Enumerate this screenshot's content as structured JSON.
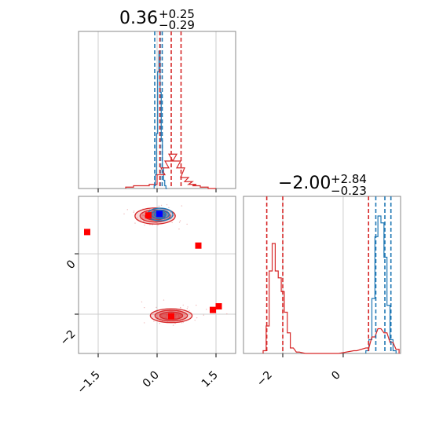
{
  "chart_data": {
    "type": "corner",
    "colors": {
      "red": "#d62728",
      "blue": "#1f77b4",
      "marker_red": "#ff0000",
      "marker_blue": "#0000ff",
      "grid": "#cccccc"
    },
    "parameters": [
      {
        "title_value": "0.36",
        "title_plus": "+0.25",
        "title_minus": "−0.29",
        "range": [
          -2.0,
          2.0
        ],
        "ticks": [
          -1.5,
          0.0,
          1.5
        ],
        "tick_labels": [
          "−1.5",
          "0.0",
          "1.5"
        ]
      },
      {
        "title_value": "−2.00",
        "title_plus": "+2.84",
        "title_minus": "−0.23",
        "range": [
          -3.3,
          1.9
        ],
        "ticks": [
          -2,
          0
        ],
        "tick_labels": [
          "−2",
          "0"
        ]
      }
    ],
    "marginal_1d": [
      {
        "blue_series": {
          "x": [
            -0.06,
            -0.03,
            0.0,
            0.03,
            0.06,
            0.09,
            0.12,
            0.15,
            0.18,
            0.21,
            0.24
          ],
          "density": [
            0.02,
            0.1,
            0.4,
            0.85,
            1.0,
            0.7,
            0.35,
            0.15,
            0.06,
            0.02,
            0.0
          ]
        },
        "red_series": {
          "x": [
            -0.7,
            -0.5,
            -0.3,
            -0.1,
            0.1,
            0.2,
            0.3,
            0.4,
            0.5,
            0.6,
            0.7,
            0.8,
            0.9,
            1.0,
            1.2,
            1.4
          ],
          "density": [
            0.01,
            0.02,
            0.02,
            0.03,
            0.1,
            0.15,
            0.2,
            0.25,
            0.2,
            0.15,
            0.08,
            0.05,
            0.03,
            0.02,
            0.01,
            0.0
          ]
        },
        "blue_quantiles": [
          -0.06,
          0.08,
          0.13
        ],
        "red_quantiles": [
          0.07,
          0.36,
          0.61
        ]
      },
      {
        "blue_series": {
          "x": [
            0.8,
            0.9,
            1.0,
            1.1,
            1.2,
            1.3,
            1.4,
            1.5,
            1.6,
            1.7
          ],
          "density": [
            0.02,
            0.1,
            0.4,
            0.85,
            1.0,
            0.95,
            0.7,
            0.35,
            0.1,
            0.02
          ]
        },
        "red_series": {
          "x": [
            -2.6,
            -2.5,
            -2.4,
            -2.3,
            -2.2,
            -2.1,
            -2.0,
            -1.9,
            -1.8,
            -1.7,
            -1.5,
            -1.2,
            -0.8,
            -0.2,
            0.4,
            0.8,
            1.0,
            1.2,
            1.4,
            1.6,
            1.8
          ],
          "density": [
            0.02,
            0.2,
            0.6,
            0.8,
            0.6,
            0.55,
            0.45,
            0.3,
            0.15,
            0.04,
            0.01,
            0.0,
            0.0,
            0.0,
            0.02,
            0.04,
            0.12,
            0.18,
            0.15,
            0.08,
            0.03
          ]
        },
        "blue_quantiles": [
          1.08,
          1.38,
          1.58
        ],
        "red_quantiles": [
          -2.53,
          -2.0,
          0.84
        ]
      }
    ],
    "joint_2d": {
      "red_blobs": [
        {
          "cx": 0.36,
          "cy": -2.05,
          "sx": 0.28,
          "sy": 0.12,
          "levels": [
            1.0,
            0.78,
            0.55
          ]
        },
        {
          "cx": -0.05,
          "cy": 1.25,
          "sx": 0.27,
          "sy": 0.14,
          "levels": [
            1.0,
            0.75,
            0.5
          ]
        }
      ],
      "blue_blobs": [
        {
          "cx": 0.08,
          "cy": 1.3,
          "sx": 0.17,
          "sy": 0.11,
          "levels": [
            1.0,
            0.7,
            0.45
          ]
        }
      ],
      "red_markers": [
        [
          -1.78,
          0.72
        ],
        [
          1.05,
          0.27
        ],
        [
          -0.22,
          1.27
        ],
        [
          1.57,
          -1.74
        ],
        [
          1.42,
          -1.86
        ],
        [
          0.36,
          -2.07
        ]
      ],
      "blue_markers": [
        [
          0.06,
          1.32
        ]
      ]
    }
  }
}
